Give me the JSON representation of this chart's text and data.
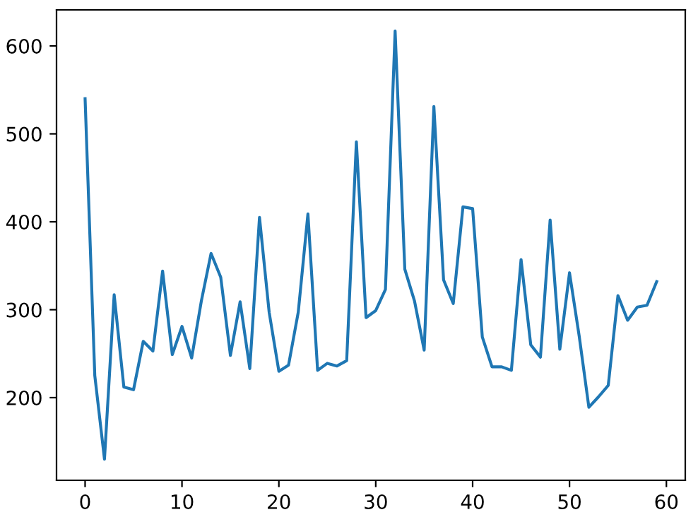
{
  "chart_data": {
    "type": "line",
    "x": [
      0,
      1,
      2,
      3,
      4,
      5,
      6,
      7,
      8,
      9,
      10,
      11,
      12,
      13,
      14,
      15,
      16,
      17,
      18,
      19,
      20,
      21,
      22,
      23,
      24,
      25,
      26,
      27,
      28,
      29,
      30,
      31,
      32,
      33,
      34,
      35,
      36,
      37,
      38,
      39,
      40,
      41,
      42,
      43,
      44,
      45,
      46,
      47,
      48,
      49,
      50,
      51,
      52,
      53,
      54,
      55,
      56,
      57,
      58,
      59
    ],
    "series": [
      {
        "color": "#1f77b4",
        "values": [
          540,
          225,
          130,
          317,
          212,
          209,
          264,
          253,
          344,
          249,
          281,
          245,
          310,
          364,
          337,
          248,
          309,
          233,
          405,
          297,
          230,
          237,
          297,
          409,
          231,
          239,
          236,
          242,
          491,
          291,
          299,
          323,
          617,
          346,
          310,
          254,
          531,
          334,
          307,
          417,
          415,
          269,
          235,
          235,
          231,
          357,
          260,
          246,
          402,
          255,
          342,
          270,
          189,
          201,
          214,
          316,
          288,
          303,
          305,
          332
        ]
      }
    ],
    "xlim": [
      -2.95,
      61.95
    ],
    "xticks": [
      0,
      10,
      20,
      30,
      40,
      50,
      60
    ],
    "ylim": [
      106,
      641
    ],
    "yticks": [
      200,
      300,
      400,
      500,
      600
    ],
    "grid": false,
    "marker": "none",
    "line_style": "solid"
  }
}
